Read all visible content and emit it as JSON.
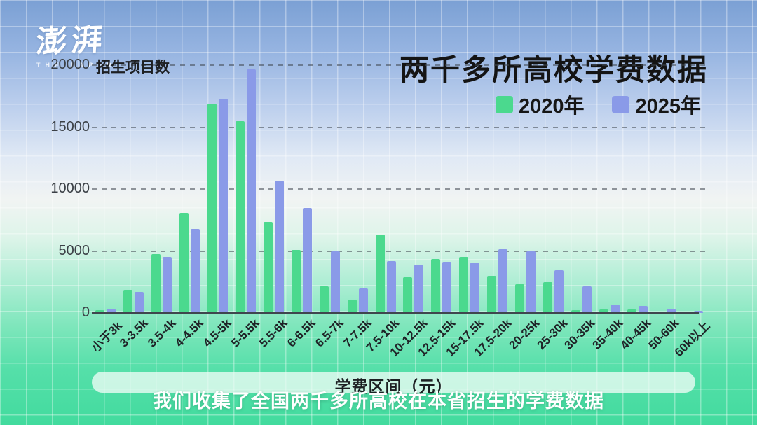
{
  "logo": {
    "brand": "澎湃",
    "subbrand": "THE PAPER"
  },
  "header": {
    "title": "两千多所高校学费数据"
  },
  "legend": [
    {
      "label": "2020年",
      "color": "#4bd98e"
    },
    {
      "label": "2025年",
      "color": "#8a9ae8"
    }
  ],
  "caption": "我们收集了全国两千多所高校在本省招生的学费数据",
  "colors": {
    "bar_2020": "#4bd98e",
    "bar_2025": "#8a9ae8",
    "title_text": "#141414",
    "background_top": "#7ba0d4",
    "background_bottom": "#42db9e",
    "caption_text": "#ffffff"
  },
  "chart_data": {
    "type": "bar",
    "title": "两千多所高校学费数据",
    "xlabel": "学费区间（元）",
    "ylabel": "招生项目数",
    "ylim": [
      0,
      20000
    ],
    "yticks": [
      0,
      5000,
      10000,
      15000,
      20000
    ],
    "grid": "horizontal dashed",
    "legend_position": "top-right",
    "categories": [
      "小于3k",
      "3-3.5k",
      "3.5-4k",
      "4-4.5k",
      "4.5-5k",
      "5-5.5k",
      "5.5-6k",
      "6-6.5k",
      "6.5-7k",
      "7-7.5k",
      "7.5-10k",
      "10-12.5k",
      "12.5-15k",
      "15-17.5k",
      "17.5-20k",
      "20-25k",
      "25-30k",
      "30-35k",
      "35-40k",
      "40-45k",
      "50-60k",
      "60k以上"
    ],
    "series": [
      {
        "name": "2020年",
        "color": "#4bd98e",
        "values": [
          250,
          1850,
          4750,
          8100,
          16900,
          15500,
          7350,
          5100,
          2150,
          1100,
          6350,
          2900,
          4350,
          4500,
          3000,
          2300,
          2500,
          250,
          300,
          300,
          100,
          50
        ]
      },
      {
        "name": "2025年",
        "color": "#8a9ae8",
        "values": [
          350,
          1700,
          4500,
          6800,
          17300,
          19650,
          10700,
          8500,
          4950,
          2000,
          4200,
          3900,
          4100,
          4050,
          5150,
          4950,
          3450,
          2150,
          680,
          550,
          350,
          150
        ]
      }
    ]
  }
}
